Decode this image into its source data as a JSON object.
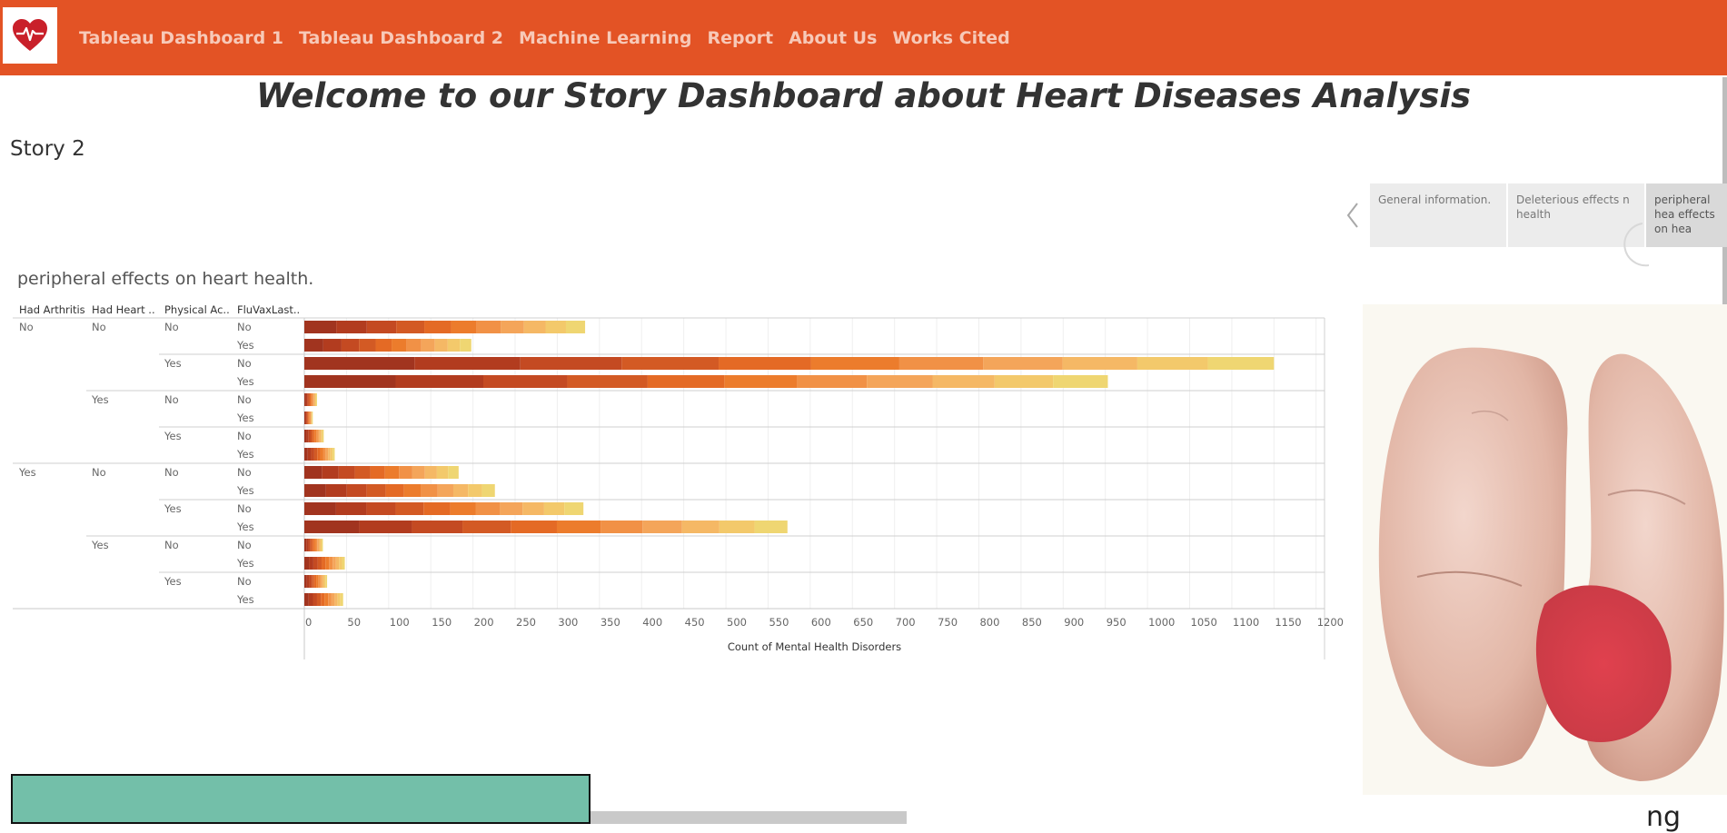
{
  "nav": {
    "logo_icon": "heart-pulse-icon",
    "links": [
      "Tableau Dashboard 1",
      "Tableau Dashboard 2",
      "Machine Learning",
      "Report",
      "About Us",
      "Works Cited"
    ]
  },
  "colors": {
    "nav_bg": "#e35325",
    "nav_text": "#f7c9b8",
    "accent_red": "#c9202a"
  },
  "page_title": "Welcome to our Story Dashboard about Heart Diseases Analysis",
  "story_label": "Story 2",
  "viz_title": "peripheral effects on heart health.",
  "story_points": [
    "General information.",
    "Deleterious effects n health",
    "peripheral hea effects on hea"
  ],
  "bottom_caption": "ng",
  "chart_data": {
    "type": "bar",
    "orientation": "horizontal",
    "stacked": true,
    "row_headers": [
      "Had Arthritis",
      "Had Heart ..",
      "Physical Ac..",
      "FluVaxLast.."
    ],
    "rows": [
      {
        "arthritis": "No",
        "heart": "No",
        "physical": "No",
        "fluvax": "No",
        "value": 333
      },
      {
        "arthritis": "",
        "heart": "",
        "physical": "",
        "fluvax": "Yes",
        "value": 198
      },
      {
        "arthritis": "",
        "heart": "",
        "physical": "Yes",
        "fluvax": "No",
        "value": 1150
      },
      {
        "arthritis": "",
        "heart": "",
        "physical": "",
        "fluvax": "Yes",
        "value": 953
      },
      {
        "arthritis": "",
        "heart": "Yes",
        "physical": "No",
        "fluvax": "No",
        "value": 15
      },
      {
        "arthritis": "",
        "heart": "",
        "physical": "",
        "fluvax": "Yes",
        "value": 10
      },
      {
        "arthritis": "",
        "heart": "",
        "physical": "Yes",
        "fluvax": "No",
        "value": 23
      },
      {
        "arthritis": "",
        "heart": "",
        "physical": "",
        "fluvax": "Yes",
        "value": 36
      },
      {
        "arthritis": "Yes",
        "heart": "No",
        "physical": "No",
        "fluvax": "No",
        "value": 183
      },
      {
        "arthritis": "",
        "heart": "",
        "physical": "",
        "fluvax": "Yes",
        "value": 226
      },
      {
        "arthritis": "",
        "heart": "",
        "physical": "Yes",
        "fluvax": "No",
        "value": 331
      },
      {
        "arthritis": "",
        "heart": "",
        "physical": "",
        "fluvax": "Yes",
        "value": 573
      },
      {
        "arthritis": "",
        "heart": "Yes",
        "physical": "No",
        "fluvax": "No",
        "value": 22
      },
      {
        "arthritis": "",
        "heart": "",
        "physical": "",
        "fluvax": "Yes",
        "value": 48
      },
      {
        "arthritis": "",
        "heart": "",
        "physical": "Yes",
        "fluvax": "No",
        "value": 27
      },
      {
        "arthritis": "",
        "heart": "",
        "physical": "",
        "fluvax": "Yes",
        "value": 46
      }
    ],
    "xlabel": "Count of Mental Health Disorders",
    "xticks": [
      0,
      50,
      100,
      150,
      200,
      250,
      300,
      350,
      400,
      450,
      500,
      550,
      600,
      650,
      700,
      750,
      800,
      850,
      900,
      950,
      1000,
      1050,
      1100,
      1150,
      1200
    ],
    "xlim": [
      0,
      1210
    ],
    "grid": true,
    "segment_colors": [
      "#a1341f",
      "#b23c1f",
      "#c44a22",
      "#d35a24",
      "#e46a25",
      "#ec7c2c",
      "#f19146",
      "#f4a55a",
      "#f5b865",
      "#f3c96b",
      "#efd672"
    ]
  }
}
